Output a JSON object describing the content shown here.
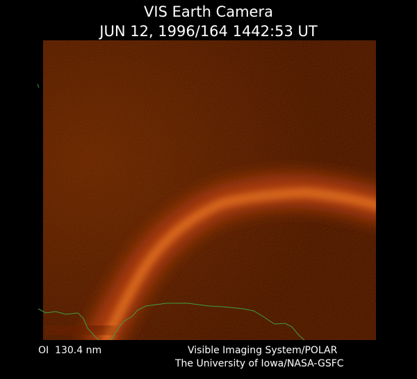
{
  "title": "VIS Earth Camera",
  "subtitle": "JUN 12, 1996/164 1442:53 UT",
  "footer": {
    "left": "OI  130.4 nm",
    "right_line1": "Visible Imaging System/POLAR",
    "right_line2": "The University of Iowa/NASA-GSFC"
  }
}
